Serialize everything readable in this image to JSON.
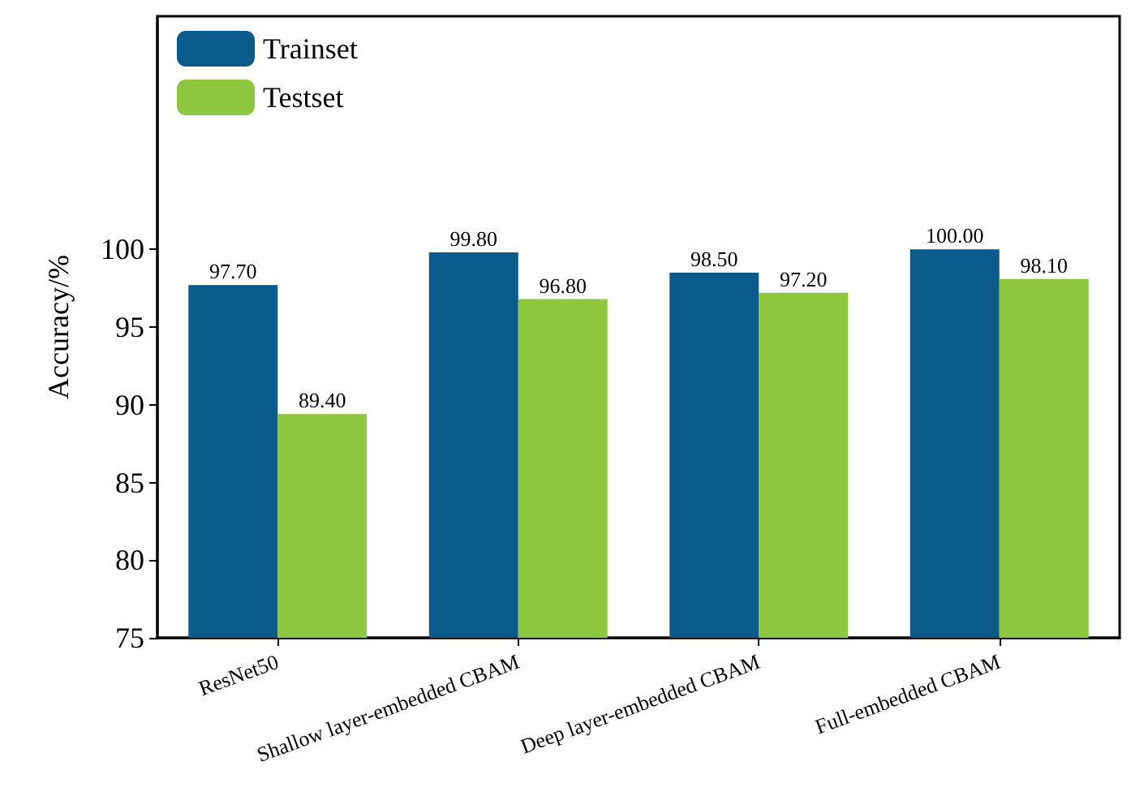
{
  "chart_data": {
    "type": "bar",
    "ylabel": "Accuracy/%",
    "categories": [
      "ResNet50",
      "Shallow layer-embedded CBAM",
      "Deep layer-embedded CBAM",
      "Full-embedded CBAM"
    ],
    "series": [
      {
        "name": "Trainset",
        "color": "#0b5a8c",
        "values": [
          97.7,
          99.8,
          98.5,
          100.0
        ],
        "value_labels": [
          "97.70",
          "99.80",
          "98.50",
          "100.00"
        ]
      },
      {
        "name": "Testset",
        "color": "#8dc63f",
        "values": [
          89.4,
          96.8,
          97.2,
          98.1
        ],
        "value_labels": [
          "89.40",
          "96.80",
          "97.20",
          "98.10"
        ]
      }
    ],
    "ylim": [
      75,
      115
    ],
    "yticks": [
      75,
      80,
      85,
      90,
      95,
      100
    ],
    "grid": false,
    "legend": "top left"
  }
}
